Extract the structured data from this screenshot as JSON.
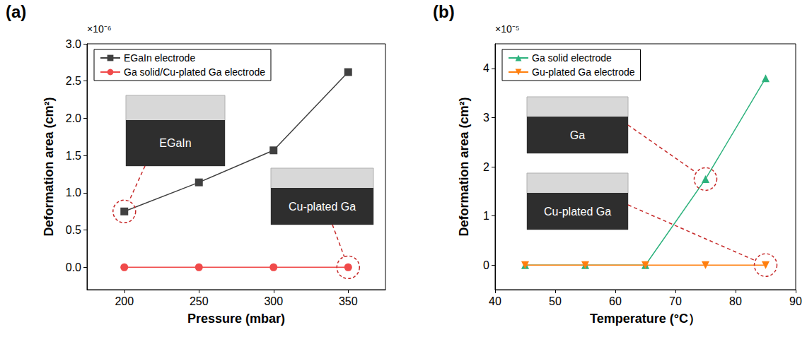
{
  "chart_data": [
    {
      "type": "line",
      "title": "(a)",
      "x_label": "Pressure (mbar)",
      "y_label": "Deformation area (cm²)",
      "y_scale_label": "×10⁻⁶",
      "x": [
        200,
        250,
        300,
        350
      ],
      "series": [
        {
          "name": "EGaIn electrode",
          "color": "#404040",
          "marker": "square",
          "values": [
            0.75,
            1.14,
            1.57,
            2.62
          ]
        },
        {
          "name": "Ga solid/Cu-plated Ga electrode",
          "color": "#f04a4a",
          "marker": "circle",
          "values": [
            0,
            0,
            0,
            0
          ]
        }
      ],
      "xlim": [
        175,
        375
      ],
      "xticks": [
        200,
        250,
        300,
        350
      ],
      "ylim": [
        -0.3,
        3.0
      ],
      "yticks": [
        {
          "value": 0,
          "label": "0.0"
        },
        0.5,
        {
          "value": 1,
          "label": "1.0"
        },
        1.5,
        {
          "value": 2,
          "label": "2.0"
        },
        2.5,
        {
          "value": 3,
          "label": "3.0"
        }
      ],
      "grid": false,
      "legend": "top-left",
      "annotations": [
        {
          "text": "EGaIn",
          "x": 200,
          "y": 0.75
        },
        {
          "text": "Cu-plated Ga",
          "x": 350,
          "y": 0
        }
      ]
    },
    {
      "type": "line",
      "title": "(b)",
      "x_label": "Temperature (°C）",
      "y_label": "Deformation area (cm²)",
      "y_scale_label": "×10⁻⁵",
      "x": [
        45,
        55,
        65,
        75,
        85
      ],
      "series": [
        {
          "name": "Ga solid electrode",
          "color": "#2db27d",
          "marker": "triangle",
          "values": [
            0,
            0,
            0,
            1.75,
            3.8
          ]
        },
        {
          "name": "Gu-plated Ga electrode",
          "color": "#ff7f0e",
          "marker": "triangle_down",
          "values": [
            0,
            0,
            0,
            0,
            0
          ]
        }
      ],
      "xlim": [
        40,
        90
      ],
      "xticks": [
        40,
        50,
        60,
        70,
        80,
        90
      ],
      "ylim": [
        -0.5,
        4.5
      ],
      "yticks": [
        0,
        1,
        2,
        3,
        4
      ],
      "grid": false,
      "legend": "top-left",
      "annotations": [
        {
          "text": "Ga",
          "x": 75,
          "y": 1.75
        },
        {
          "text": "Cu-plated Ga",
          "x": 85,
          "y": 0
        }
      ]
    }
  ]
}
